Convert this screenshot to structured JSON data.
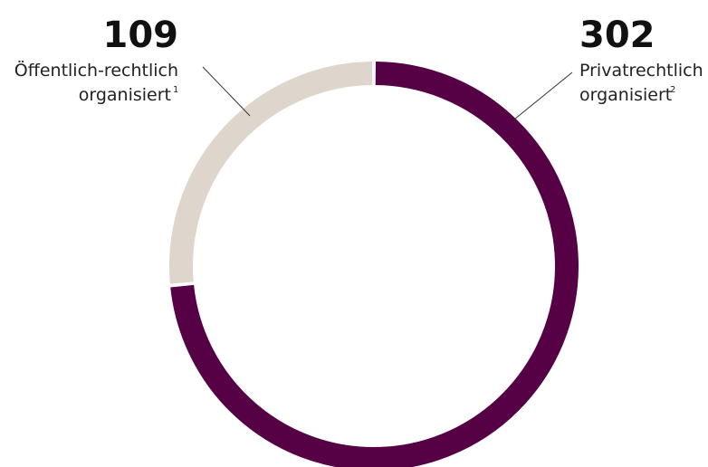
{
  "chart_data": {
    "type": "pie",
    "style": "donut",
    "categories": [
      "Öffentlich-rechtlich organisiert",
      "Privatrechtlich organisiert"
    ],
    "values": [
      109,
      302
    ],
    "colors": [
      "#ded6cc",
      "#560045"
    ],
    "labels": [
      {
        "value": "109",
        "line1": "Öffentlich-rechtlich",
        "line2": "organisiert",
        "footnote": "1"
      },
      {
        "value": "302",
        "line1": "Privatrechtlich",
        "line2": "organisiert",
        "footnote": "2"
      }
    ]
  }
}
